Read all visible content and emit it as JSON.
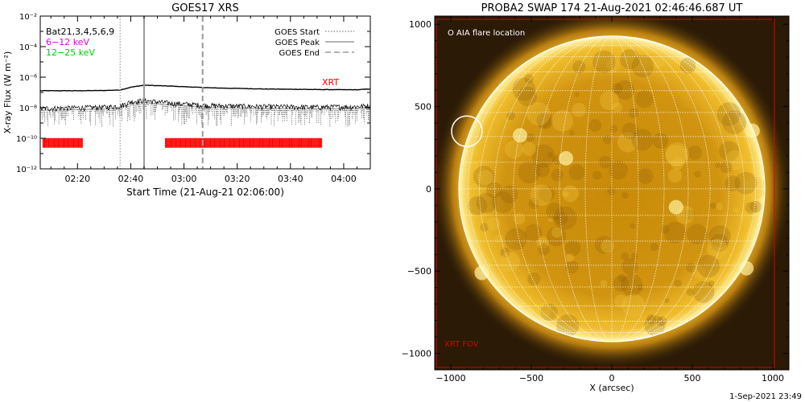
{
  "footer_timestamp": "1-Sep-2021 23:49",
  "chart_data": [
    {
      "type": "line",
      "title": "GOES17 XRS",
      "xlabel": "Start Time (21-Aug-21 02:06:00)",
      "ylabel": "X-ray Flux (W m⁻²)",
      "y_scale": "log",
      "ylim": [
        1e-12,
        0.01
      ],
      "xlim": [
        "02:06",
        "04:10"
      ],
      "x_ticks": [
        "02:20",
        "02:40",
        "03:00",
        "03:20",
        "03:40",
        "04:00"
      ],
      "y_ticks": [
        "10⁻¹²",
        "10⁻¹⁰",
        "10⁻⁸",
        "10⁻⁶",
        "10⁻⁴",
        "10⁻²"
      ],
      "legend_left": {
        "position": "top-left",
        "entries": [
          {
            "label": "Bat21,3,4,5,6,9",
            "color": "#000000"
          },
          {
            "label": "6−12 keV",
            "color": "#dd00dd"
          },
          {
            "label": "12−25 keV",
            "color": "#00cc00"
          }
        ]
      },
      "legend_right": {
        "position": "top-right",
        "entries": [
          {
            "label": "GOES Start",
            "style": "dotted",
            "time": "02:36"
          },
          {
            "label": "GOES Peak",
            "style": "solid",
            "time": "02:45"
          },
          {
            "label": "GOES End",
            "style": "dashed",
            "time": "03:07"
          }
        ]
      },
      "series": [
        {
          "name": "GOES long channel",
          "color": "#000000",
          "x": [
            "02:06",
            "02:20",
            "02:30",
            "02:36",
            "02:40",
            "02:45",
            "02:55",
            "03:10",
            "03:30",
            "03:50",
            "04:05",
            "04:10"
          ],
          "values": [
            1.3e-07,
            1.3e-07,
            1.35e-07,
            1.45e-07,
            2.2e-07,
            3e-07,
            2.6e-07,
            2e-07,
            1.7e-07,
            1.55e-07,
            1.5e-07,
            1.7e-07
          ]
        },
        {
          "name": "GOES short channel",
          "color": "#000000",
          "x": [
            "02:06",
            "02:20",
            "02:30",
            "02:36",
            "02:40",
            "02:45",
            "02:55",
            "03:10",
            "03:30",
            "03:50",
            "04:05",
            "04:10"
          ],
          "values": [
            9e-09,
            1e-08,
            1.1e-08,
            1.3e-08,
            2.5e-08,
            3e-08,
            2e-08,
            1.4e-08,
            1.2e-08,
            1.1e-08,
            1.2e-08,
            1.4e-08
          ]
        }
      ],
      "xrt": {
        "label": "XRT",
        "color": "#ff0000",
        "level": 5e-11,
        "intervals": [
          [
            "02:07",
            "02:22"
          ],
          [
            "02:53",
            "03:52"
          ]
        ]
      }
    },
    {
      "type": "image",
      "title": "PROBA2 SWAP 174 21-Aug-2021 02:46:46.687 UT",
      "xlabel": "X (arcsec)",
      "xlim": [
        -1100,
        1100
      ],
      "ylim": [
        -1100,
        1050
      ],
      "x_ticks": [
        -1000,
        -500,
        0,
        500,
        1000
      ],
      "y_ticks": [
        -1000,
        -500,
        0,
        500,
        1000
      ],
      "sun_radius_arcsec": 950,
      "legend": "O AIA flare location",
      "flare": {
        "x": -900,
        "y": 350,
        "radius": 95
      },
      "fov": {
        "label": "XRT FOV",
        "color": "#dd0000",
        "x": [
          -1090,
          1010
        ],
        "y": [
          -1085,
          1030
        ]
      },
      "grid_spacing_deg": 10
    }
  ]
}
